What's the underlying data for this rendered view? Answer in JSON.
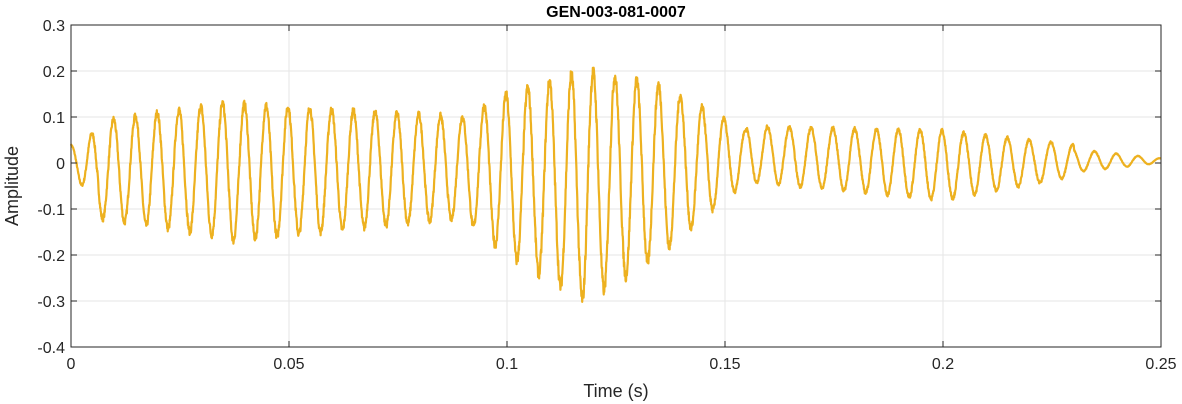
{
  "chart_data": {
    "type": "line",
    "title": "GEN-003-081-0007",
    "xlabel": "Time (s)",
    "ylabel": "Amplitude",
    "xlim": [
      0,
      0.25
    ],
    "ylim": [
      -0.4,
      0.3
    ],
    "xticks": [
      0,
      0.05,
      0.1,
      0.15,
      0.2,
      0.25
    ],
    "xtick_labels": [
      "0",
      "0.05",
      "0.1",
      "0.15",
      "0.2",
      "0.25"
    ],
    "yticks": [
      -0.4,
      -0.3,
      -0.2,
      -0.1,
      0,
      0.1,
      0.2,
      0.3
    ],
    "ytick_labels": [
      "-0.4",
      "-0.3",
      "-0.2",
      "-0.1",
      "0",
      "0.1",
      "0.2",
      "0.3"
    ],
    "grid": true,
    "line_color": "#EDB120",
    "series": [
      {
        "oscillation_frequency_hz": 200,
        "segments": [
          {
            "t_start": 0.0,
            "t_end": 0.006,
            "upper": [
              0.04,
              0.07
            ],
            "lower": [
              0.0,
              -0.12
            ]
          },
          {
            "t_start": 0.006,
            "t_end": 0.035,
            "upper": [
              0.09,
              0.13
            ],
            "lower": [
              -0.12,
              -0.16
            ]
          },
          {
            "t_start": 0.035,
            "t_end": 0.09,
            "upper": [
              0.13,
              0.1
            ],
            "lower": [
              -0.17,
              -0.12
            ]
          },
          {
            "t_start": 0.09,
            "t_end": 0.1,
            "upper": [
              0.1,
              0.15
            ],
            "lower": [
              -0.12,
              -0.2
            ]
          },
          {
            "t_start": 0.1,
            "t_end": 0.118,
            "upper": [
              0.15,
              0.2
            ],
            "lower": [
              -0.2,
              -0.3
            ]
          },
          {
            "t_start": 0.118,
            "t_end": 0.135,
            "upper": [
              0.2,
              0.17
            ],
            "lower": [
              -0.3,
              -0.2
            ]
          },
          {
            "t_start": 0.135,
            "t_end": 0.155,
            "upper": [
              0.17,
              0.07
            ],
            "lower": [
              -0.2,
              -0.04
            ]
          },
          {
            "t_start": 0.155,
            "t_end": 0.2,
            "upper": [
              0.08,
              0.07
            ],
            "lower": [
              -0.04,
              -0.08
            ]
          },
          {
            "t_start": 0.2,
            "t_end": 0.23,
            "upper": [
              0.07,
              0.04
            ],
            "lower": [
              -0.08,
              -0.03
            ]
          },
          {
            "t_start": 0.23,
            "t_end": 0.25,
            "upper": [
              0.03,
              0.01
            ],
            "lower": [
              -0.02,
              0.0
            ]
          }
        ]
      }
    ]
  }
}
